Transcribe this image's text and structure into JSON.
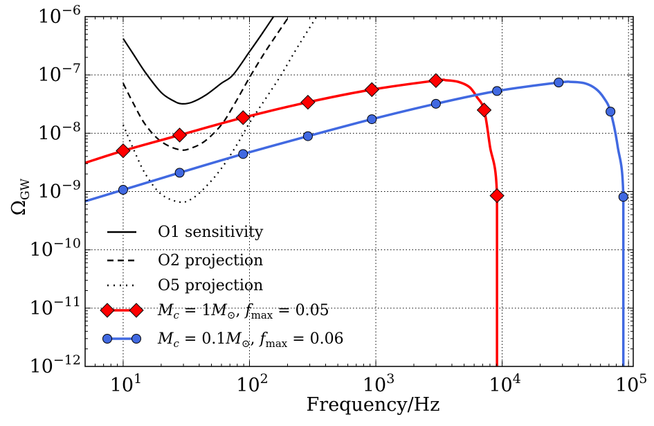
{
  "chart_data": {
    "type": "line",
    "title": "",
    "xlabel": "Frequency/Hz",
    "ylabel": "Ω_GW",
    "ylabel_main": "Ω",
    "ylabel_sub": "GW",
    "xscale": "log",
    "yscale": "log",
    "xlim": [
      5,
      109000
    ],
    "ylim": [
      1e-12,
      1e-06
    ],
    "grid": true,
    "grid_style": "dotted",
    "legend_position": "bottom-left",
    "x_ticks": [
      {
        "value": 10,
        "base": "10",
        "exp": "1"
      },
      {
        "value": 100,
        "base": "10",
        "exp": "2"
      },
      {
        "value": 1000,
        "base": "10",
        "exp": "3"
      },
      {
        "value": 10000,
        "base": "10",
        "exp": "4"
      },
      {
        "value": 100000,
        "base": "10",
        "exp": "5"
      }
    ],
    "y_ticks": [
      {
        "value": 1e-06,
        "base": "10",
        "exp": "−6"
      },
      {
        "value": 1e-07,
        "base": "10",
        "exp": "−7"
      },
      {
        "value": 1e-08,
        "base": "10",
        "exp": "−8"
      },
      {
        "value": 1e-09,
        "base": "10",
        "exp": "−9"
      },
      {
        "value": 1e-10,
        "base": "10",
        "exp": "−10"
      },
      {
        "value": 1e-11,
        "base": "10",
        "exp": "−11"
      },
      {
        "value": 1e-12,
        "base": "10",
        "exp": "−12"
      }
    ],
    "series": [
      {
        "name": "O1 sensitivity",
        "color": "#000000",
        "style": "solid",
        "marker": "none",
        "points": [
          [
            10,
            4.2e-07
          ],
          [
            12,
            2.3e-07
          ],
          [
            15,
            1.1e-07
          ],
          [
            20,
            5e-08
          ],
          [
            25,
            3.6e-08
          ],
          [
            29,
            3.2e-08
          ],
          [
            35,
            3.4e-08
          ],
          [
            45,
            4.5e-08
          ],
          [
            60,
            7.2e-08
          ],
          [
            74,
            1e-07
          ],
          [
            100,
            2.5e-07
          ],
          [
            125,
            5e-07
          ],
          [
            155,
            1e-06
          ]
        ]
      },
      {
        "name": "O2 projection",
        "color": "#000000",
        "style": "dashed",
        "marker": "none",
        "points": [
          [
            10,
            7.2e-08
          ],
          [
            12,
            3.3e-08
          ],
          [
            15,
            1.4e-08
          ],
          [
            20,
            7.2e-09
          ],
          [
            28,
            5.2e-09
          ],
          [
            35,
            5.6e-09
          ],
          [
            45,
            7.5e-09
          ],
          [
            60,
            1.4e-08
          ],
          [
            75,
            3e-08
          ],
          [
            100,
            9e-08
          ],
          [
            130,
            2.3e-07
          ],
          [
            165,
            5e-07
          ],
          [
            205,
            1e-06
          ]
        ]
      },
      {
        "name": "O5 projection",
        "color": "#000000",
        "style": "dotted",
        "marker": "none",
        "points": [
          [
            10,
            1.4e-08
          ],
          [
            12,
            5.5e-09
          ],
          [
            15,
            2e-09
          ],
          [
            20,
            9e-10
          ],
          [
            28,
            6.6e-10
          ],
          [
            35,
            7.5e-10
          ],
          [
            45,
            1.2e-09
          ],
          [
            60,
            2.5e-09
          ],
          [
            80,
            6.5e-09
          ],
          [
            100,
            1.5e-08
          ],
          [
            140,
            4.5e-08
          ],
          [
            178,
            1e-07
          ],
          [
            240,
            3e-07
          ],
          [
            340,
            1e-06
          ]
        ]
      },
      {
        "name": "M_c = 1M_⊙, f_max = 0.05",
        "color": "#ff0000",
        "style": "solid",
        "marker": "diamond",
        "points": [
          [
            5,
            3.1e-09
          ],
          [
            10,
            5e-09
          ],
          [
            28,
            9.3e-09
          ],
          [
            89,
            1.85e-08
          ],
          [
            290,
            3.4e-08
          ],
          [
            930,
            5.6e-08
          ],
          [
            2990,
            8e-08
          ],
          [
            3600,
            8.1e-08
          ],
          [
            4500,
            7.6e-08
          ],
          [
            5500,
            6.2e-08
          ],
          [
            6300,
            4.2e-08
          ],
          [
            7200,
            2.5e-08
          ],
          [
            8000,
            6e-09
          ],
          [
            9100,
            8.5e-10
          ],
          [
            9100,
            1e-12
          ]
        ],
        "marker_points": [
          [
            10,
            5e-09
          ],
          [
            28,
            9.3e-09
          ],
          [
            89,
            1.85e-08
          ],
          [
            290,
            3.4e-08
          ],
          [
            930,
            5.6e-08
          ],
          [
            2990,
            8e-08
          ],
          [
            7200,
            2.5e-08
          ],
          [
            9100,
            8.5e-10
          ]
        ]
      },
      {
        "name": "M_c = 0.1M_⊙, f_max = 0.06",
        "color": "#4169e1",
        "style": "solid",
        "marker": "circle",
        "points": [
          [
            5,
            6.8e-10
          ],
          [
            10,
            1.07e-09
          ],
          [
            28,
            2.1e-09
          ],
          [
            89,
            4.4e-09
          ],
          [
            290,
            8.9e-09
          ],
          [
            930,
            1.74e-08
          ],
          [
            2990,
            3.2e-08
          ],
          [
            9100,
            5.3e-08
          ],
          [
            28000,
            7.4e-08
          ],
          [
            35000,
            7.6e-08
          ],
          [
            45000,
            7.2e-08
          ],
          [
            55000,
            5.8e-08
          ],
          [
            64000,
            4e-08
          ],
          [
            72000,
            2.35e-08
          ],
          [
            82000,
            6e-09
          ],
          [
            91000,
            8.1e-10
          ],
          [
            91000,
            1e-12
          ]
        ],
        "marker_points": [
          [
            10,
            1.07e-09
          ],
          [
            28,
            2.1e-09
          ],
          [
            89,
            4.4e-09
          ],
          [
            290,
            8.9e-09
          ],
          [
            930,
            1.74e-08
          ],
          [
            2990,
            3.2e-08
          ],
          [
            9100,
            5.3e-08
          ],
          [
            28000,
            7.4e-08
          ],
          [
            72000,
            2.35e-08
          ],
          [
            91000,
            8.1e-10
          ]
        ]
      }
    ],
    "legend": [
      {
        "label": "O1 sensitivity",
        "style": "solid",
        "color": "#000000",
        "marker": "none"
      },
      {
        "label": "O2 projection",
        "style": "dashed",
        "color": "#000000",
        "marker": "none"
      },
      {
        "label": "O5 projection",
        "style": "dotted",
        "color": "#000000",
        "marker": "none"
      },
      {
        "label_parts": {
          "m": "M",
          "msub": "c",
          "eq1": " = 1",
          "m2": "M",
          "sun": "⊙",
          "comma": ", ",
          "f": "f",
          "fsub": "max",
          "eq2": " = 0.05"
        },
        "style": "solid",
        "color": "#ff0000",
        "marker": "diamond"
      },
      {
        "label_parts": {
          "m": "M",
          "msub": "c",
          "eq1": " = 0.1",
          "m2": "M",
          "sun": "⊙",
          "comma": ", ",
          "f": "f",
          "fsub": "max",
          "eq2": " = 0.06"
        },
        "style": "solid",
        "color": "#4169e1",
        "marker": "circle"
      }
    ]
  }
}
